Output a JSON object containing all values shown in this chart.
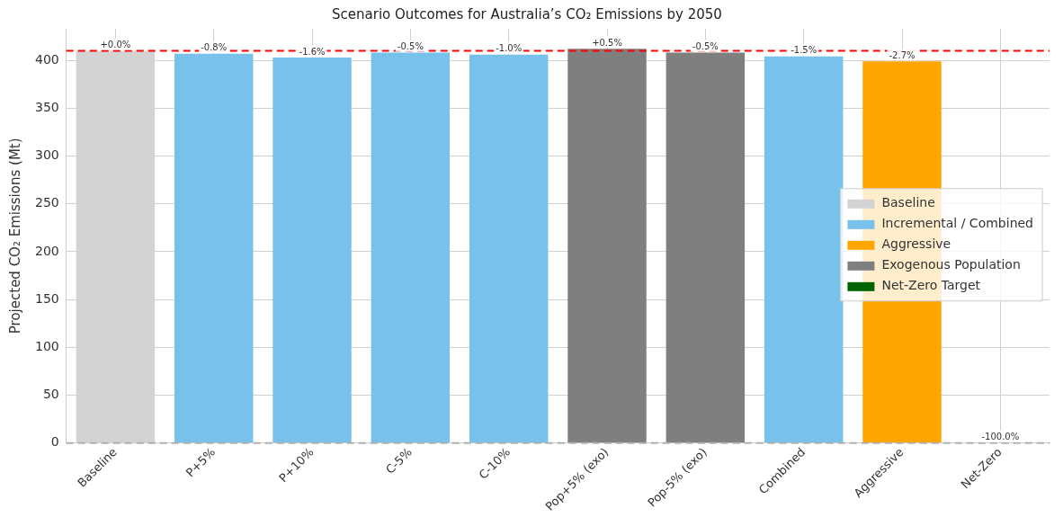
{
  "chart_data": {
    "type": "bar",
    "title": "Scenario Outcomes for Australia’s CO₂ Emissions by 2050",
    "ylabel": "Projected CO₂ Emissions (Mt)",
    "categories": [
      "Baseline",
      "P+5%",
      "P+10%",
      "C-5%",
      "C-10%",
      "Pop+5% (exo)",
      "Pop-5% (exo)",
      "Combined",
      "Aggressive",
      "Net-Zero"
    ],
    "series": [
      {
        "name": "Baseline",
        "color": "#d3d3d3",
        "values": [
          410,
          null,
          null,
          null,
          null,
          null,
          null,
          null,
          null,
          null
        ]
      },
      {
        "name": "Incremental / Combined",
        "color": "#77c1ea",
        "values": [
          null,
          407,
          403,
          408,
          406,
          null,
          null,
          404,
          null,
          null
        ]
      },
      {
        "name": "Aggressive",
        "color": "#ffa500",
        "values": [
          null,
          null,
          null,
          null,
          null,
          null,
          null,
          null,
          399,
          null
        ]
      },
      {
        "name": "Exogenous Population",
        "color": "#7f7f7f",
        "values": [
          null,
          null,
          null,
          null,
          null,
          412,
          408,
          null,
          null,
          null
        ]
      },
      {
        "name": "Net-Zero Target",
        "color": "#006400",
        "values": [
          null,
          null,
          null,
          null,
          null,
          null,
          null,
          null,
          null,
          0
        ]
      }
    ],
    "value_labels": [
      "+0.0%",
      "-0.8%",
      "-1.6%",
      "-0.5%",
      "-1.0%",
      "+0.5%",
      "-0.5%",
      "-1.5%",
      "-2.7%",
      "-100.0%"
    ],
    "ylim": [
      0,
      433
    ],
    "yticks": [
      0,
      50,
      100,
      150,
      200,
      250,
      300,
      350,
      400
    ],
    "ref_lines": [
      {
        "axis": "y",
        "value": 410,
        "color": "#ff0000",
        "line_style": "dashed"
      },
      {
        "axis": "y",
        "value": 0,
        "color": "#b0b0b0",
        "line_style": "dashed"
      }
    ],
    "grid": true,
    "legend": "right"
  }
}
